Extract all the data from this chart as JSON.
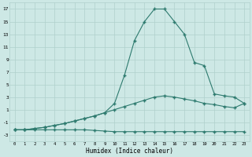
{
  "xlabel": "Humidex (Indice chaleur)",
  "xlim": [
    -0.5,
    23.5
  ],
  "ylim": [
    -4,
    18
  ],
  "xticks": [
    0,
    1,
    2,
    3,
    4,
    5,
    6,
    7,
    8,
    9,
    10,
    11,
    12,
    13,
    14,
    15,
    16,
    17,
    18,
    19,
    20,
    21,
    22,
    23
  ],
  "yticks": [
    -3,
    -1,
    1,
    3,
    5,
    7,
    9,
    11,
    13,
    15,
    17
  ],
  "bg_color": "#cde8e5",
  "grid_color": "#b0d0cc",
  "line_color": "#2d7a6e",
  "curve_bottom_x": [
    0,
    1,
    2,
    3,
    4,
    5,
    6,
    7,
    8,
    9,
    10,
    11,
    12,
    13,
    14,
    15,
    16,
    17,
    18,
    19,
    20,
    21,
    22,
    23
  ],
  "curve_bottom_y": [
    -2.2,
    -2.2,
    -2.2,
    -2.2,
    -2.2,
    -2.2,
    -2.2,
    -2.2,
    -2.3,
    -2.4,
    -2.5,
    -2.5,
    -2.5,
    -2.5,
    -2.5,
    -2.5,
    -2.5,
    -2.5,
    -2.5,
    -2.5,
    -2.5,
    -2.5,
    -2.5,
    -2.5
  ],
  "curve_mid_x": [
    0,
    1,
    2,
    3,
    4,
    5,
    6,
    7,
    8,
    9,
    10,
    11,
    12,
    13,
    14,
    15,
    16,
    17,
    18,
    19,
    20,
    21,
    22,
    23
  ],
  "curve_mid_y": [
    -2.2,
    -2.2,
    -2.0,
    -1.8,
    -1.5,
    -1.2,
    -0.8,
    -0.4,
    0.0,
    0.5,
    1.0,
    1.5,
    2.0,
    2.5,
    3.0,
    3.2,
    3.0,
    2.7,
    2.4,
    2.0,
    1.8,
    1.5,
    1.3,
    2.0
  ],
  "curve_top_x": [
    0,
    1,
    2,
    3,
    4,
    5,
    6,
    7,
    8,
    9,
    10,
    11,
    12,
    13,
    14,
    15,
    16,
    17,
    18,
    19,
    20,
    21,
    22,
    23
  ],
  "curve_top_y": [
    -2.2,
    -2.2,
    -2.0,
    -1.8,
    -1.5,
    -1.2,
    -0.8,
    -0.4,
    0.0,
    0.5,
    2.0,
    6.5,
    12.0,
    15.0,
    17.0,
    17.0,
    15.0,
    13.0,
    8.5,
    8.0,
    3.5,
    3.2,
    3.0,
    2.0
  ]
}
